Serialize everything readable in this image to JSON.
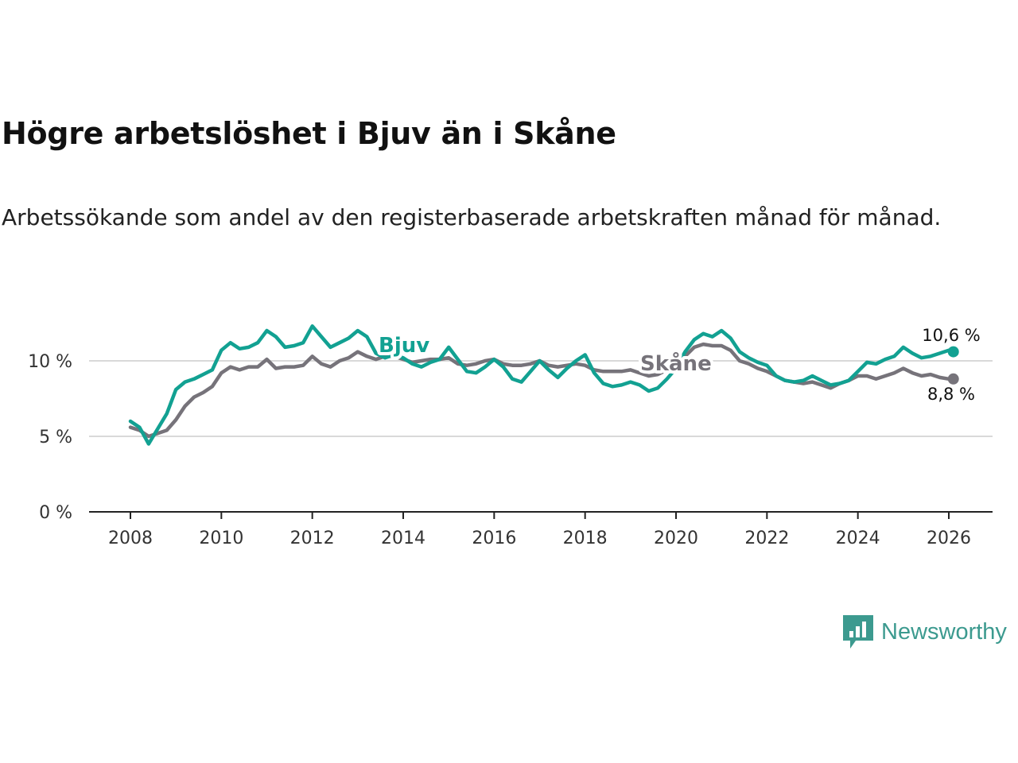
{
  "title": "Högre arbetslöshet i Bjuv än i Skåne",
  "subtitle": "Arbetssökande som andel av den registerbaserade arbetskraften månad för månad.",
  "brand": {
    "name": "Newsworthy",
    "color": "#3c9a8f"
  },
  "chart_data": {
    "type": "line",
    "xlim": [
      2008,
      2026.1
    ],
    "ylim": [
      0,
      12.5
    ],
    "x_ticks": [
      "2008",
      "2010",
      "2012",
      "2014",
      "2016",
      "2018",
      "2020",
      "2022",
      "2024",
      "2026"
    ],
    "y_ticks": [
      {
        "value": 0,
        "label": "0 %"
      },
      {
        "value": 5,
        "label": "5 %"
      },
      {
        "value": 10,
        "label": "10 %"
      }
    ],
    "grid": true,
    "series": [
      {
        "name": "Skåne",
        "color": "#76737a",
        "end_label": "8,8 %",
        "points": [
          [
            2008.0,
            5.6
          ],
          [
            2008.2,
            5.4
          ],
          [
            2008.4,
            5.0
          ],
          [
            2008.6,
            5.2
          ],
          [
            2008.8,
            5.4
          ],
          [
            2009.0,
            6.1
          ],
          [
            2009.2,
            7.0
          ],
          [
            2009.4,
            7.6
          ],
          [
            2009.6,
            7.9
          ],
          [
            2009.8,
            8.3
          ],
          [
            2010.0,
            9.2
          ],
          [
            2010.2,
            9.6
          ],
          [
            2010.4,
            9.4
          ],
          [
            2010.6,
            9.6
          ],
          [
            2010.8,
            9.6
          ],
          [
            2011.0,
            10.1
          ],
          [
            2011.2,
            9.5
          ],
          [
            2011.4,
            9.6
          ],
          [
            2011.6,
            9.6
          ],
          [
            2011.8,
            9.7
          ],
          [
            2012.0,
            10.3
          ],
          [
            2012.2,
            9.8
          ],
          [
            2012.4,
            9.6
          ],
          [
            2012.6,
            10.0
          ],
          [
            2012.8,
            10.2
          ],
          [
            2013.0,
            10.6
          ],
          [
            2013.2,
            10.3
          ],
          [
            2013.4,
            10.1
          ],
          [
            2013.6,
            10.3
          ],
          [
            2013.8,
            10.3
          ],
          [
            2014.0,
            10.1
          ],
          [
            2014.2,
            9.9
          ],
          [
            2014.4,
            10.0
          ],
          [
            2014.6,
            10.1
          ],
          [
            2014.8,
            10.1
          ],
          [
            2015.0,
            10.2
          ],
          [
            2015.2,
            9.8
          ],
          [
            2015.4,
            9.7
          ],
          [
            2015.6,
            9.8
          ],
          [
            2015.8,
            10.0
          ],
          [
            2016.0,
            10.1
          ],
          [
            2016.2,
            9.8
          ],
          [
            2016.4,
            9.7
          ],
          [
            2016.6,
            9.7
          ],
          [
            2016.8,
            9.8
          ],
          [
            2017.0,
            10.0
          ],
          [
            2017.2,
            9.7
          ],
          [
            2017.4,
            9.6
          ],
          [
            2017.6,
            9.7
          ],
          [
            2017.8,
            9.8
          ],
          [
            2018.0,
            9.7
          ],
          [
            2018.2,
            9.4
          ],
          [
            2018.4,
            9.3
          ],
          [
            2018.6,
            9.3
          ],
          [
            2018.8,
            9.3
          ],
          [
            2019.0,
            9.4
          ],
          [
            2019.2,
            9.2
          ],
          [
            2019.4,
            9.0
          ],
          [
            2019.6,
            9.1
          ],
          [
            2019.8,
            9.4
          ],
          [
            2020.0,
            9.6
          ],
          [
            2020.2,
            10.3
          ],
          [
            2020.4,
            10.9
          ],
          [
            2020.6,
            11.1
          ],
          [
            2020.8,
            11.0
          ],
          [
            2021.0,
            11.0
          ],
          [
            2021.2,
            10.7
          ],
          [
            2021.4,
            10.0
          ],
          [
            2021.6,
            9.8
          ],
          [
            2021.8,
            9.5
          ],
          [
            2022.0,
            9.3
          ],
          [
            2022.2,
            9.0
          ],
          [
            2022.4,
            8.7
          ],
          [
            2022.6,
            8.6
          ],
          [
            2022.8,
            8.5
          ],
          [
            2023.0,
            8.6
          ],
          [
            2023.2,
            8.4
          ],
          [
            2023.4,
            8.2
          ],
          [
            2023.6,
            8.5
          ],
          [
            2023.8,
            8.7
          ],
          [
            2024.0,
            9.0
          ],
          [
            2024.2,
            9.0
          ],
          [
            2024.4,
            8.8
          ],
          [
            2024.6,
            9.0
          ],
          [
            2024.8,
            9.2
          ],
          [
            2025.0,
            9.5
          ],
          [
            2025.2,
            9.2
          ],
          [
            2025.4,
            9.0
          ],
          [
            2025.6,
            9.1
          ],
          [
            2025.8,
            8.9
          ],
          [
            2026.0,
            8.8
          ],
          [
            2026.1,
            8.8
          ]
        ]
      },
      {
        "name": "Bjuv",
        "color": "#12a192",
        "end_label": "10,6 %",
        "points": [
          [
            2008.0,
            6.0
          ],
          [
            2008.2,
            5.6
          ],
          [
            2008.4,
            4.5
          ],
          [
            2008.6,
            5.5
          ],
          [
            2008.8,
            6.5
          ],
          [
            2009.0,
            8.1
          ],
          [
            2009.2,
            8.6
          ],
          [
            2009.4,
            8.8
          ],
          [
            2009.6,
            9.1
          ],
          [
            2009.8,
            9.4
          ],
          [
            2010.0,
            10.7
          ],
          [
            2010.2,
            11.2
          ],
          [
            2010.4,
            10.8
          ],
          [
            2010.6,
            10.9
          ],
          [
            2010.8,
            11.2
          ],
          [
            2011.0,
            12.0
          ],
          [
            2011.2,
            11.6
          ],
          [
            2011.4,
            10.9
          ],
          [
            2011.6,
            11.0
          ],
          [
            2011.8,
            11.2
          ],
          [
            2012.0,
            12.3
          ],
          [
            2012.2,
            11.6
          ],
          [
            2012.4,
            10.9
          ],
          [
            2012.6,
            11.2
          ],
          [
            2012.8,
            11.5
          ],
          [
            2013.0,
            12.0
          ],
          [
            2013.2,
            11.6
          ],
          [
            2013.4,
            10.5
          ],
          [
            2013.6,
            10.2
          ],
          [
            2013.8,
            10.4
          ],
          [
            2014.0,
            10.2
          ],
          [
            2014.2,
            9.8
          ],
          [
            2014.4,
            9.6
          ],
          [
            2014.6,
            9.9
          ],
          [
            2014.8,
            10.1
          ],
          [
            2015.0,
            10.9
          ],
          [
            2015.2,
            10.1
          ],
          [
            2015.4,
            9.3
          ],
          [
            2015.6,
            9.2
          ],
          [
            2015.8,
            9.6
          ],
          [
            2016.0,
            10.1
          ],
          [
            2016.2,
            9.6
          ],
          [
            2016.4,
            8.8
          ],
          [
            2016.6,
            8.6
          ],
          [
            2016.8,
            9.3
          ],
          [
            2017.0,
            10.0
          ],
          [
            2017.2,
            9.4
          ],
          [
            2017.4,
            8.9
          ],
          [
            2017.6,
            9.5
          ],
          [
            2017.8,
            10.0
          ],
          [
            2018.0,
            10.4
          ],
          [
            2018.2,
            9.2
          ],
          [
            2018.4,
            8.5
          ],
          [
            2018.6,
            8.3
          ],
          [
            2018.8,
            8.4
          ],
          [
            2019.0,
            8.6
          ],
          [
            2019.2,
            8.4
          ],
          [
            2019.4,
            8.0
          ],
          [
            2019.6,
            8.2
          ],
          [
            2019.8,
            8.8
          ],
          [
            2020.0,
            9.5
          ],
          [
            2020.2,
            10.6
          ],
          [
            2020.4,
            11.4
          ],
          [
            2020.6,
            11.8
          ],
          [
            2020.8,
            11.6
          ],
          [
            2021.0,
            12.0
          ],
          [
            2021.2,
            11.5
          ],
          [
            2021.4,
            10.6
          ],
          [
            2021.6,
            10.2
          ],
          [
            2021.8,
            9.9
          ],
          [
            2022.0,
            9.7
          ],
          [
            2022.2,
            9.0
          ],
          [
            2022.4,
            8.7
          ],
          [
            2022.6,
            8.6
          ],
          [
            2022.8,
            8.7
          ],
          [
            2023.0,
            9.0
          ],
          [
            2023.2,
            8.7
          ],
          [
            2023.4,
            8.4
          ],
          [
            2023.6,
            8.5
          ],
          [
            2023.8,
            8.7
          ],
          [
            2024.0,
            9.3
          ],
          [
            2024.2,
            9.9
          ],
          [
            2024.4,
            9.8
          ],
          [
            2024.6,
            10.1
          ],
          [
            2024.8,
            10.3
          ],
          [
            2025.0,
            10.9
          ],
          [
            2025.2,
            10.5
          ],
          [
            2025.4,
            10.2
          ],
          [
            2025.6,
            10.3
          ],
          [
            2025.8,
            10.5
          ],
          [
            2026.0,
            10.7
          ],
          [
            2026.1,
            10.6
          ]
        ]
      }
    ]
  }
}
